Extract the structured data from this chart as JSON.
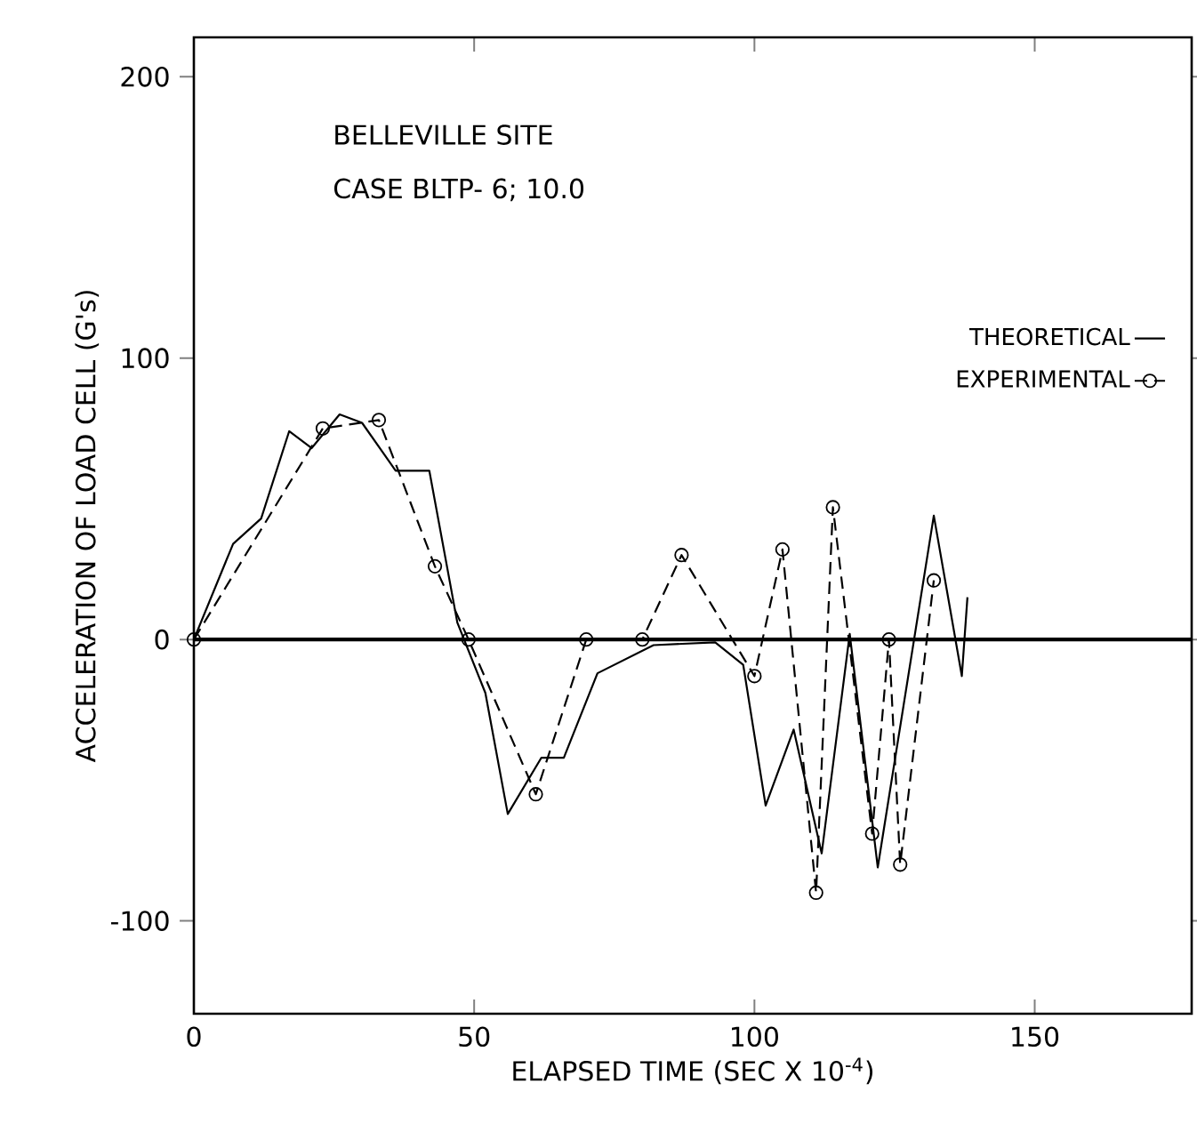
{
  "chart_data": {
    "type": "line",
    "title": "BELLEVILLE SITE",
    "subtitle": "CASE BLTP- 6; 10.0",
    "xlabel": "ELAPSED TIME (SEC X 10$^{-4}$)",
    "ylabel": "ACCELERATION OF LOAD CELL (G's)",
    "xlim": [
      0,
      178
    ],
    "ylim": [
      -133,
      214
    ],
    "xticks": [
      0,
      50,
      100,
      150
    ],
    "yticks": [
      -100,
      0,
      100,
      200
    ],
    "legend": "right",
    "ref_lines": [
      {
        "axis": "y",
        "value": 0,
        "color": "#000000"
      }
    ],
    "series": [
      {
        "name": "THEORETICAL",
        "color": "#000000",
        "line_style": "solid",
        "marker": "none",
        "x": [
          0,
          7,
          12,
          17,
          21,
          26,
          30,
          36,
          42,
          47,
          52,
          56,
          62,
          66,
          72,
          82,
          93,
          98,
          102,
          107,
          112,
          117,
          122,
          132,
          137,
          138
        ],
        "values": [
          0,
          34,
          43,
          74,
          68,
          80,
          77,
          60,
          60,
          6,
          -19,
          -62,
          -42,
          -42,
          -12,
          -2,
          -1,
          -9,
          -59,
          -32,
          -76,
          2,
          -81,
          44,
          -13,
          15
        ]
      },
      {
        "name": "EXPERIMENTAL",
        "color": "#000000",
        "line_style": "dashed",
        "marker": "circle",
        "x": [
          0,
          23,
          33,
          43,
          49,
          61,
          70,
          80,
          87,
          100,
          105,
          111,
          114,
          121,
          124,
          126,
          132
        ],
        "values": [
          0,
          75,
          78,
          26,
          0,
          -55,
          0,
          0,
          30,
          -13,
          32,
          -90,
          47,
          -69,
          0,
          -80,
          21
        ]
      }
    ]
  }
}
